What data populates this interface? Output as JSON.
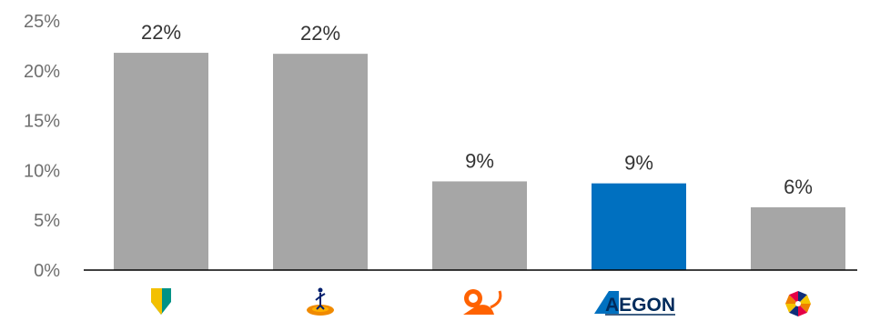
{
  "chart_data": {
    "type": "bar",
    "categories": [
      "ABN AMRO",
      "Rabobank",
      "ING",
      "AEGON",
      "NN"
    ],
    "values": [
      22,
      22,
      9,
      9,
      6
    ],
    "value_estimates": [
      21.8,
      21.7,
      8.9,
      8.7,
      6.3
    ],
    "data_labels": [
      "22%",
      "22%",
      "9%",
      "9%",
      "6%"
    ],
    "highlight_index": 3,
    "ylim": [
      0,
      25
    ],
    "yticks": [
      0,
      5,
      10,
      15,
      20,
      25
    ],
    "ytick_labels": [
      "0%",
      "5%",
      "10%",
      "15%",
      "20%",
      "25%"
    ],
    "title": "",
    "xlabel": "",
    "ylabel": "",
    "grid": false,
    "colors": {
      "bar": "#a6a6a6",
      "highlight": "#0070c0",
      "axis": "#000000"
    },
    "category_logos": [
      "abn-amro-shield-logo",
      "rabobank-figure-logo",
      "ing-lion-logo",
      "aegon-wordmark-logo",
      "nn-star-logo"
    ],
    "aegon_wordmark_text": "AEGON"
  }
}
